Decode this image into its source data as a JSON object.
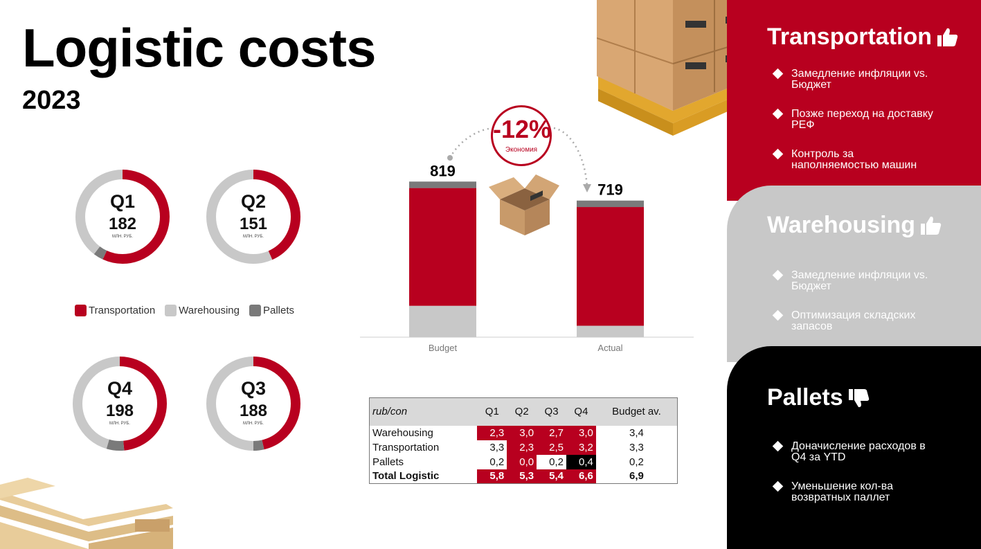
{
  "header": {
    "title": "Logistic costs",
    "year": "2023"
  },
  "colors": {
    "transportation": "#b8001f",
    "warehousing": "#c8c8c8",
    "pallets": "#7a7a7a",
    "accent": "#b8001f"
  },
  "donuts": [
    {
      "quarter": "Q1",
      "value": "182",
      "unit": "МЛН. РУБ.",
      "shares": {
        "transportation": 3.3,
        "warehousing": 2.3,
        "pallets": 0.2
      }
    },
    {
      "quarter": "Q2",
      "value": "151",
      "unit": "МЛН. РУБ.",
      "shares": {
        "transportation": 2.3,
        "warehousing": 3.0,
        "pallets": 0.0
      }
    },
    {
      "quarter": "Q4",
      "value": "198",
      "unit": "МЛН. РУБ.",
      "shares": {
        "transportation": 3.2,
        "warehousing": 3.0,
        "pallets": 0.4
      }
    },
    {
      "quarter": "Q3",
      "value": "188",
      "unit": "МЛН. РУБ.",
      "shares": {
        "transportation": 2.5,
        "warehousing": 2.7,
        "pallets": 0.2
      }
    }
  ],
  "legend": [
    {
      "label": "Transportation",
      "color": "#b8001f"
    },
    {
      "label": "Warehousing",
      "color": "#c8c8c8"
    },
    {
      "label": "Pallets",
      "color": "#7a7a7a"
    }
  ],
  "savings": {
    "percent": "-12%",
    "label": "Экономия"
  },
  "chart_data": {
    "type": "bar",
    "stacked": true,
    "categories": [
      "Budget",
      "Actual"
    ],
    "totals": [
      "819",
      "719"
    ],
    "series": [
      {
        "name": "Warehousing",
        "values": [
          165,
          60
        ]
      },
      {
        "name": "Transportation",
        "values": [
          620,
          625
        ]
      },
      {
        "name": "Pallets",
        "values": [
          34,
          34
        ]
      }
    ],
    "ylim": [
      0,
      820
    ],
    "legend": "none",
    "grid": false
  },
  "table": {
    "headers": [
      "rub/con",
      "Q1",
      "Q2",
      "Q3",
      "Q4",
      "Budget av."
    ],
    "rows": [
      {
        "label": "Warehousing",
        "cells": [
          "2,3",
          "3,0",
          "2,7",
          "3,0"
        ],
        "budget": "3,4",
        "fills": [
          "red",
          "red",
          "red",
          "red"
        ]
      },
      {
        "label": "Transportation",
        "cells": [
          "3,3",
          "2,3",
          "2,5",
          "3,2"
        ],
        "budget": "3,3",
        "fills": [
          "white",
          "red",
          "red",
          "red"
        ]
      },
      {
        "label": "Pallets",
        "cells": [
          "0,2",
          "0,0",
          "0,2",
          "0,4"
        ],
        "budget": "0,2",
        "fills": [
          "white",
          "red",
          "white",
          "black"
        ]
      },
      {
        "label": "Total Logistic",
        "cells": [
          "5,8",
          "5,3",
          "5,4",
          "6,6"
        ],
        "budget": "6,9",
        "fills": [
          "red",
          "red",
          "red",
          "red"
        ],
        "bold": true
      }
    ]
  },
  "panels": [
    {
      "title": "Transportation",
      "icon": "thumbs-up-icon",
      "bullets": [
        "Замедление инфляции vs. Бюджет",
        "Позже переход на доставку РЕФ",
        "Контроль за наполняемостью машин"
      ]
    },
    {
      "title": "Warehousing",
      "icon": "thumbs-up-icon",
      "bullets": [
        "Замедление инфляции vs. Бюджет",
        "Оптимизация складских запасов"
      ]
    },
    {
      "title": "Pallets",
      "icon": "thumbs-down-icon",
      "bullets": [
        "Доначисление расходов в Q4 за YTD",
        "Уменьшение кол-ва возвратных паллет"
      ]
    }
  ]
}
